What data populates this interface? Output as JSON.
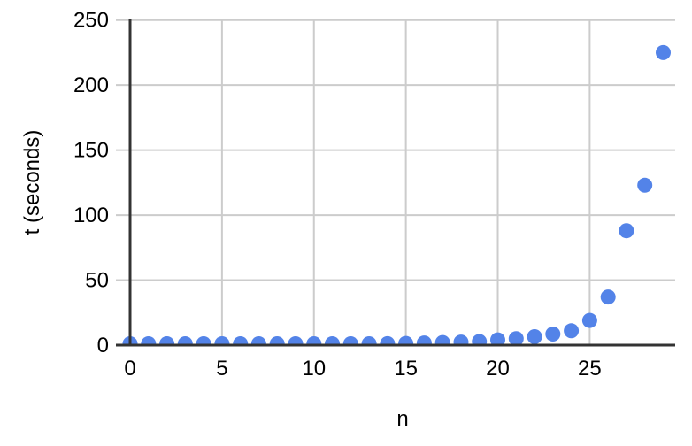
{
  "chart_data": {
    "type": "scatter",
    "title": "",
    "xlabel": "n",
    "ylabel": "t (seconds)",
    "x": [
      0,
      1,
      2,
      3,
      4,
      5,
      6,
      7,
      8,
      9,
      10,
      11,
      12,
      13,
      14,
      15,
      16,
      17,
      18,
      19,
      20,
      21,
      22,
      23,
      24,
      25,
      26,
      27,
      28,
      29
    ],
    "y": [
      1,
      1,
      1,
      1,
      1,
      1,
      1,
      1,
      1,
      1,
      1,
      1,
      1,
      1,
      1.1,
      1.3,
      1.6,
      2,
      2.3,
      2.7,
      4,
      5,
      6.5,
      8.5,
      11,
      19,
      37,
      88,
      123,
      225
    ],
    "x_ticks": [
      0,
      5,
      10,
      15,
      20,
      25
    ],
    "y_ticks": [
      0,
      50,
      100,
      150,
      200,
      250
    ],
    "xlim": [
      0,
      29.65
    ],
    "ylim": [
      0,
      250
    ],
    "grid": true,
    "legend": false,
    "marker_radius": 8.5,
    "colors": {
      "point": "#5383e8",
      "grid": "#cccccc",
      "axis": "#333333",
      "text": "#000000",
      "background": "#ffffff"
    }
  }
}
